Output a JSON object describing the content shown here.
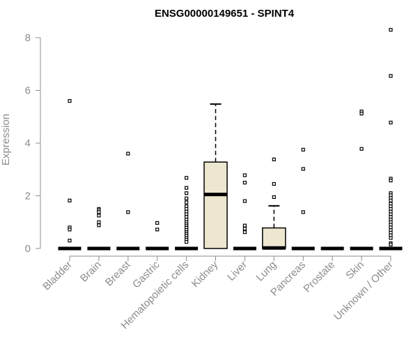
{
  "chart_data": {
    "type": "boxplot",
    "title": "ENSG00000149651 - SPINT4",
    "xlabel": "",
    "ylabel": "Expression",
    "ylim": [
      0,
      8.4
    ],
    "y_ticks": [
      0,
      2,
      4,
      6,
      8
    ],
    "box_fill": "#ede7d0",
    "grid": false,
    "categories": [
      "Bladder",
      "Brain",
      "Breast",
      "Gastric",
      "Hematopoietic cells",
      "Kidney",
      "Liver",
      "Lung",
      "Pancreas",
      "Prostate",
      "Skin",
      "Unknown / Other"
    ],
    "boxes": [
      {
        "q1": 0,
        "median": 0,
        "q3": 0,
        "whisker_low": 0,
        "whisker_high": 0,
        "outliers": [
          5.6,
          1.82,
          0.8,
          0.72,
          0.3
        ]
      },
      {
        "q1": 0,
        "median": 0,
        "q3": 0,
        "whisker_low": 0,
        "whisker_high": 0,
        "outliers": [
          1.5,
          1.45,
          1.38,
          1.25,
          1.0,
          0.88
        ]
      },
      {
        "q1": 0,
        "median": 0,
        "q3": 0,
        "whisker_low": 0,
        "whisker_high": 0,
        "outliers": [
          3.6,
          1.38
        ]
      },
      {
        "q1": 0,
        "median": 0,
        "q3": 0,
        "whisker_low": 0,
        "whisker_high": 0,
        "outliers": [
          0.97,
          0.72
        ]
      },
      {
        "q1": 0,
        "median": 0,
        "q3": 0,
        "whisker_low": 0,
        "whisker_high": 0,
        "outliers": [
          2.68,
          2.3,
          2.1,
          1.9,
          1.75,
          1.6,
          1.5,
          1.4,
          1.3,
          1.2,
          1.1,
          1.0,
          0.92,
          0.85,
          0.78,
          0.7,
          0.62,
          0.55,
          0.48,
          0.4,
          0.33,
          0.25
        ]
      },
      {
        "q1": 0,
        "median": 2.05,
        "q3": 3.28,
        "whisker_low": 0,
        "whisker_high": 5.48,
        "outliers": []
      },
      {
        "q1": 0,
        "median": 0,
        "q3": 0,
        "whisker_low": 0,
        "whisker_high": 0,
        "outliers": [
          2.78,
          2.5,
          1.8,
          0.87,
          0.75,
          0.62
        ]
      },
      {
        "q1": 0,
        "median": 0.02,
        "q3": 0.78,
        "whisker_low": 0,
        "whisker_high": 1.62,
        "outliers": [
          3.38,
          2.45,
          1.95
        ]
      },
      {
        "q1": 0,
        "median": 0,
        "q3": 0,
        "whisker_low": 0,
        "whisker_high": 0,
        "outliers": [
          3.75,
          3.02,
          1.38
        ]
      },
      {
        "q1": 0,
        "median": 0,
        "q3": 0,
        "whisker_low": 0,
        "whisker_high": 0,
        "outliers": []
      },
      {
        "q1": 0,
        "median": 0,
        "q3": 0,
        "whisker_low": 0,
        "whisker_high": 0,
        "outliers": [
          5.2,
          5.12,
          3.78
        ]
      },
      {
        "q1": 0,
        "median": 0,
        "q3": 0,
        "whisker_low": 0,
        "whisker_high": 0,
        "outliers": [
          8.3,
          6.55,
          4.78,
          2.65,
          2.58,
          2.1,
          2.02,
          1.92,
          1.82,
          1.7,
          1.6,
          1.5,
          1.4,
          1.3,
          1.2,
          1.1,
          1.0,
          0.9,
          0.8,
          0.7,
          0.6,
          0.5,
          0.4,
          0.2,
          0.15
        ]
      }
    ]
  }
}
